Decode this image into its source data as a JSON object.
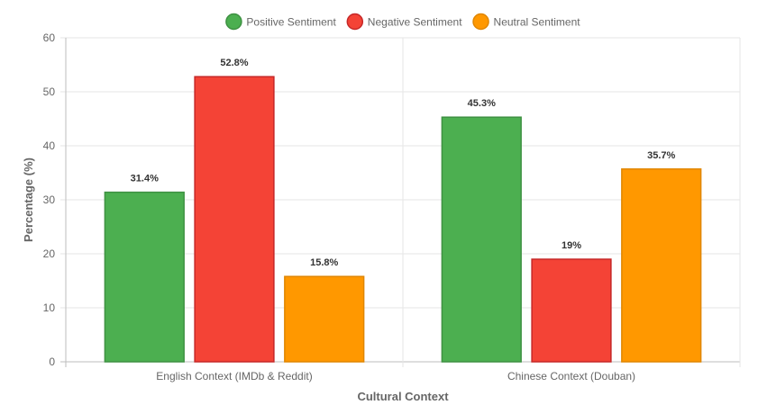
{
  "chart_data": {
    "type": "bar",
    "title": "",
    "xlabel": "Cultural Context",
    "ylabel": "Percentage (%)",
    "ylim": [
      0,
      60
    ],
    "yticks": [
      0,
      10,
      20,
      30,
      40,
      50,
      60
    ],
    "grid": true,
    "legend_position": "top-center",
    "categories": [
      "English Context (IMDb & Reddit)",
      "Chinese Context (Douban)"
    ],
    "series": [
      {
        "name": "Positive Sentiment",
        "values": [
          31.4,
          45.3
        ],
        "labels": [
          "31.4%",
          "45.3%"
        ],
        "color": "#4caf50",
        "border": "#3e9142"
      },
      {
        "name": "Negative Sentiment",
        "values": [
          52.8,
          19
        ],
        "labels": [
          "52.8%",
          "19%"
        ],
        "color": "#f44336",
        "border": "#c62828"
      },
      {
        "name": "Neutral Sentiment",
        "values": [
          15.8,
          35.7
        ],
        "labels": [
          "15.8%",
          "35.7%"
        ],
        "color": "#ff9800",
        "border": "#e08600"
      }
    ]
  }
}
